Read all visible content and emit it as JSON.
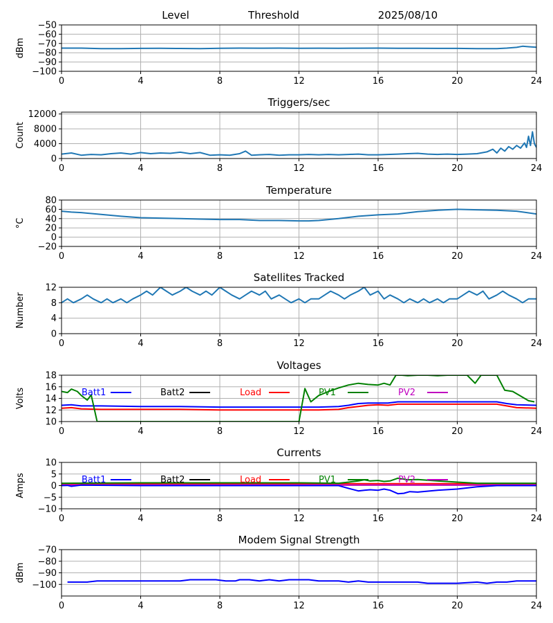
{
  "header": {
    "level": "Level",
    "threshold": "Threshold",
    "date": "2025/08/10"
  },
  "colors": {
    "series_default": "#1f77b4",
    "batt1": "#0000ff",
    "batt2": "#000000",
    "load": "#ff0000",
    "pv1": "#008000",
    "pv2": "#bf00bf",
    "grid": "#b0b0b0"
  },
  "chart_data": [
    {
      "id": "level",
      "type": "line",
      "title": "",
      "xlabel": "",
      "ylabel": "dBm",
      "xlim": [
        0,
        24
      ],
      "ylim": [
        -100,
        -50
      ],
      "xticks": [
        0,
        4,
        8,
        12,
        16,
        20,
        24
      ],
      "yticks": [
        -100,
        -90,
        -80,
        -70,
        -60,
        -50
      ],
      "grid": true,
      "series": [
        {
          "color": "#1f77b4",
          "x": [
            0.0,
            1.0,
            2.0,
            3.0,
            4.0,
            5.0,
            6.0,
            7.0,
            8.0,
            9.0,
            10.0,
            11.0,
            12.0,
            13.0,
            14.0,
            15.0,
            16.0,
            17.0,
            18.0,
            19.0,
            20.0,
            21.0,
            22.0,
            22.5,
            23.0,
            23.3,
            23.6,
            24.0
          ],
          "y": [
            -75,
            -75,
            -75.5,
            -75.5,
            -75.3,
            -75.2,
            -75.4,
            -75.5,
            -75.2,
            -75,
            -75.1,
            -75,
            -75.2,
            -75.1,
            -75.2,
            -75.1,
            -75,
            -75.2,
            -75.2,
            -75.3,
            -75.3,
            -75.5,
            -75.5,
            -75,
            -74.2,
            -73,
            -73.5,
            -74
          ]
        }
      ]
    },
    {
      "id": "triggers",
      "type": "line",
      "title": "Triggers/sec",
      "xlabel": "",
      "ylabel": "Count",
      "xlim": [
        0,
        24
      ],
      "ylim": [
        0,
        12500
      ],
      "xticks": [
        0,
        4,
        8,
        12,
        16,
        20,
        24
      ],
      "yticks": [
        0,
        4000,
        8000,
        12000
      ],
      "grid": true,
      "series": [
        {
          "color": "#1f77b4",
          "x": [
            0.0,
            0.5,
            1.0,
            1.5,
            2.0,
            2.5,
            3.0,
            3.5,
            4.0,
            4.5,
            5.0,
            5.5,
            6.0,
            6.5,
            7.0,
            7.5,
            8.0,
            8.5,
            9.0,
            9.3,
            9.6,
            10.0,
            10.5,
            11.0,
            11.5,
            12.0,
            12.5,
            13.0,
            13.5,
            14.0,
            14.5,
            15.0,
            15.5,
            16.0,
            16.5,
            17.0,
            17.5,
            18.0,
            18.5,
            19.0,
            19.5,
            20.0,
            20.5,
            21.0,
            21.5,
            21.8,
            22.0,
            22.2,
            22.4,
            22.6,
            22.8,
            23.0,
            23.2,
            23.4,
            23.5,
            23.6,
            23.7,
            23.8,
            23.9,
            24.0
          ],
          "y": [
            1200,
            1500,
            900,
            1100,
            1000,
            1300,
            1500,
            1200,
            1600,
            1300,
            1500,
            1400,
            1700,
            1300,
            1600,
            900,
            1000,
            900,
            1300,
            2000,
            900,
            1000,
            1100,
            900,
            1000,
            1000,
            1100,
            1000,
            1100,
            1000,
            1100,
            1200,
            1000,
            1000,
            1100,
            1200,
            1300,
            1400,
            1200,
            1100,
            1200,
            1100,
            1200,
            1300,
            1800,
            2500,
            1500,
            2800,
            2000,
            3200,
            2500,
            3500,
            2800,
            4200,
            3000,
            6000,
            3500,
            7200,
            4000,
            3000
          ]
        }
      ]
    },
    {
      "id": "temperature",
      "type": "line",
      "title": "Temperature",
      "xlabel": "",
      "ylabel": "°C",
      "xlim": [
        0,
        24
      ],
      "ylim": [
        -20,
        80
      ],
      "xticks": [
        0,
        4,
        8,
        12,
        16,
        20,
        24
      ],
      "yticks": [
        -20,
        0,
        20,
        40,
        60,
        80
      ],
      "grid": true,
      "series": [
        {
          "color": "#1f77b4",
          "x": [
            0.0,
            0.5,
            1.0,
            2.0,
            3.0,
            4.0,
            5.0,
            6.0,
            7.0,
            8.0,
            9.0,
            10.0,
            11.0,
            12.0,
            12.5,
            13.0,
            14.0,
            15.0,
            16.0,
            17.0,
            18.0,
            19.0,
            20.0,
            21.0,
            22.0,
            23.0,
            24.0
          ],
          "y": [
            56,
            54,
            53,
            49,
            45,
            42,
            41,
            40,
            39,
            38,
            38,
            36,
            36,
            35,
            35,
            36,
            40,
            45,
            48,
            50,
            55,
            58,
            60,
            59,
            58,
            56,
            50
          ]
        }
      ]
    },
    {
      "id": "satellites",
      "type": "line",
      "title": "Satellites Tracked",
      "xlabel": "",
      "ylabel": "Number",
      "xlim": [
        0,
        24
      ],
      "ylim": [
        0,
        12
      ],
      "xticks": [
        0,
        4,
        8,
        12,
        16,
        20,
        24
      ],
      "yticks": [
        0,
        4,
        8,
        12
      ],
      "grid": true,
      "series": [
        {
          "color": "#1f77b4",
          "x": [
            0.0,
            0.3,
            0.6,
            1.0,
            1.3,
            1.6,
            2.0,
            2.3,
            2.6,
            3.0,
            3.3,
            3.6,
            4.0,
            4.3,
            4.6,
            5.0,
            5.3,
            5.6,
            6.0,
            6.3,
            6.6,
            7.0,
            7.3,
            7.6,
            8.0,
            8.3,
            8.6,
            9.0,
            9.3,
            9.6,
            10.0,
            10.3,
            10.6,
            11.0,
            11.3,
            11.6,
            12.0,
            12.3,
            12.6,
            13.0,
            13.3,
            13.6,
            14.0,
            14.3,
            14.6,
            15.0,
            15.3,
            15.6,
            16.0,
            16.3,
            16.6,
            17.0,
            17.3,
            17.6,
            18.0,
            18.3,
            18.6,
            19.0,
            19.3,
            19.6,
            20.0,
            20.3,
            20.6,
            21.0,
            21.3,
            21.6,
            22.0,
            22.3,
            22.6,
            23.0,
            23.3,
            23.6,
            24.0
          ],
          "y": [
            8,
            9,
            8,
            9,
            10,
            9,
            8,
            9,
            8,
            9,
            8,
            9,
            10,
            11,
            10,
            12,
            11,
            10,
            11,
            12,
            11,
            10,
            11,
            10,
            12,
            11,
            10,
            9,
            10,
            11,
            10,
            11,
            9,
            10,
            9,
            8,
            9,
            8,
            9,
            9,
            10,
            11,
            10,
            9,
            10,
            11,
            12,
            10,
            11,
            9,
            10,
            9,
            8,
            9,
            8,
            9,
            8,
            9,
            8,
            9,
            9,
            10,
            11,
            10,
            11,
            9,
            10,
            11,
            10,
            9,
            8,
            9,
            9
          ]
        }
      ]
    },
    {
      "id": "voltages",
      "type": "line",
      "title": "Voltages",
      "xlabel": "",
      "ylabel": "Volts",
      "xlim": [
        0,
        24
      ],
      "ylim": [
        10,
        18
      ],
      "xticks": [
        0,
        4,
        8,
        12,
        16,
        20,
        24
      ],
      "yticks": [
        10,
        12,
        14,
        16,
        18
      ],
      "grid": true,
      "legend": [
        "Batt1",
        "Batt2",
        "Load",
        "PV1",
        "PV2"
      ],
      "series": [
        {
          "name": "Batt1",
          "color": "#0000ff",
          "x": [
            0.0,
            0.5,
            1.0,
            2.0,
            4.0,
            6.0,
            8.0,
            10.0,
            12.0,
            13.0,
            14.0,
            14.5,
            15.0,
            15.5,
            16.0,
            16.5,
            17.0,
            17.5,
            18.0,
            20.0,
            22.0,
            22.5,
            23.0,
            24.0
          ],
          "y": [
            12.8,
            12.9,
            12.7,
            12.7,
            12.6,
            12.6,
            12.5,
            12.5,
            12.5,
            12.5,
            12.6,
            12.8,
            13.1,
            13.2,
            13.2,
            13.2,
            13.4,
            13.4,
            13.4,
            13.4,
            13.4,
            13.1,
            12.9,
            12.8
          ]
        },
        {
          "name": "Load",
          "color": "#ff0000",
          "x": [
            0.0,
            0.5,
            1.0,
            2.0,
            4.0,
            6.0,
            8.0,
            10.0,
            12.0,
            13.0,
            14.0,
            14.5,
            15.0,
            15.5,
            16.0,
            16.5,
            17.0,
            17.5,
            18.0,
            20.0,
            22.0,
            22.5,
            23.0,
            24.0
          ],
          "y": [
            12.3,
            12.4,
            12.2,
            12.1,
            12.1,
            12.1,
            12.0,
            12.0,
            12.0,
            12.0,
            12.1,
            12.4,
            12.6,
            12.8,
            12.9,
            12.8,
            13.0,
            13.0,
            13.0,
            13.0,
            13.0,
            12.7,
            12.4,
            12.3
          ]
        },
        {
          "name": "PV1",
          "color": "#008000",
          "x": [
            0.0,
            0.3,
            0.5,
            0.8,
            1.0,
            1.3,
            1.5,
            1.8,
            12.0,
            12.3,
            12.6,
            13.0,
            13.5,
            14.0,
            14.5,
            15.0,
            15.5,
            16.0,
            16.3,
            16.6,
            16.9,
            17.2,
            17.5,
            18.0,
            18.5,
            19.0,
            19.5,
            20.0,
            20.5,
            20.9,
            21.2,
            21.6,
            22.0,
            22.4,
            22.8,
            23.2,
            23.6,
            23.9
          ],
          "y": [
            15.2,
            15.0,
            15.6,
            15.2,
            14.5,
            13.7,
            14.6,
            10.0,
            10.0,
            15.7,
            13.4,
            14.5,
            15.2,
            15.8,
            16.3,
            16.6,
            16.4,
            16.3,
            16.6,
            16.3,
            18.0,
            18.0,
            17.9,
            18.0,
            18.0,
            17.9,
            18.0,
            18.0,
            18.0,
            16.6,
            18.0,
            18.0,
            18.0,
            15.4,
            15.2,
            14.4,
            13.6,
            13.4
          ]
        }
      ]
    },
    {
      "id": "currents",
      "type": "line",
      "title": "Currents",
      "xlabel": "",
      "ylabel": "Amps",
      "xlim": [
        0,
        24
      ],
      "ylim": [
        -10,
        10
      ],
      "xticks": [
        0,
        4,
        8,
        12,
        16,
        20,
        24
      ],
      "yticks": [
        -10,
        -5,
        0,
        5,
        10
      ],
      "grid": true,
      "legend": [
        "Batt1",
        "Batt2",
        "Load",
        "PV1",
        "PV2"
      ],
      "series": [
        {
          "name": "Load",
          "color": "#ff0000",
          "x": [
            0,
            24
          ],
          "y": [
            0.8,
            0.8
          ]
        },
        {
          "name": "PV2",
          "color": "#bf00bf",
          "x": [
            0,
            24
          ],
          "y": [
            0.2,
            0.2
          ]
        },
        {
          "name": "PV1",
          "color": "#008000",
          "x": [
            0.0,
            4.0,
            8.0,
            12.0,
            14.0,
            14.5,
            15.0,
            15.3,
            15.6,
            16.0,
            16.3,
            16.6,
            17.0,
            17.5,
            18.0,
            19.0,
            20.0,
            21.0,
            22.0,
            23.0,
            24.0
          ],
          "y": [
            1.0,
            1.2,
            1.2,
            1.2,
            1.0,
            1.5,
            2.0,
            2.5,
            2.0,
            2.2,
            1.8,
            2.0,
            3.2,
            2.5,
            2.6,
            2.0,
            1.5,
            1.0,
            1.0,
            1.0,
            1.0
          ]
        },
        {
          "name": "Batt1",
          "color": "#0000ff",
          "x": [
            0.0,
            0.3,
            0.5,
            1.0,
            4.0,
            8.0,
            12.0,
            14.0,
            14.5,
            15.0,
            15.3,
            15.6,
            16.0,
            16.3,
            16.6,
            17.0,
            17.3,
            17.6,
            18.0,
            19.0,
            20.0,
            21.0,
            22.0,
            23.0,
            24.0
          ],
          "y": [
            0.0,
            0.1,
            -0.3,
            0.2,
            0.0,
            0.0,
            0.0,
            0.0,
            -1.2,
            -2.3,
            -2.0,
            -1.8,
            -2.0,
            -1.5,
            -2.0,
            -3.5,
            -3.3,
            -2.6,
            -2.8,
            -2.0,
            -1.5,
            -0.5,
            0.0,
            0.0,
            0.0
          ]
        }
      ]
    },
    {
      "id": "modem",
      "type": "line",
      "title": "Modem Signal Strength",
      "xlabel": "",
      "ylabel": "dBm",
      "xlim": [
        0,
        24
      ],
      "ylim": [
        -110,
        -70
      ],
      "xticks": [
        0,
        4,
        8,
        12,
        16,
        20,
        24
      ],
      "yticks": [
        -100,
        -90,
        -80,
        -70
      ],
      "grid": true,
      "series": [
        {
          "color": "#0000ff",
          "x": [
            0.3,
            1.0,
            1.3,
            1.8,
            2.0,
            3.0,
            4.0,
            5.0,
            6.0,
            6.5,
            7.0,
            7.5,
            7.8,
            8.3,
            8.8,
            9.0,
            9.5,
            10.0,
            10.5,
            11.0,
            11.5,
            12.0,
            12.5,
            13.0,
            13.5,
            14.0,
            14.5,
            15.0,
            15.5,
            16.0,
            17.0,
            18.0,
            18.5,
            19.0,
            19.5,
            20.0,
            21.0,
            21.5,
            22.0,
            22.5,
            23.0,
            23.5,
            24.0
          ],
          "y": [
            -98,
            -98,
            -98,
            -97,
            -97,
            -97,
            -97,
            -97,
            -97,
            -96,
            -96,
            -96,
            -96,
            -97,
            -97,
            -96,
            -96,
            -97,
            -96,
            -97,
            -96,
            -96,
            -96,
            -97,
            -97,
            -97,
            -98,
            -97,
            -98,
            -98,
            -98,
            -98,
            -99,
            -99,
            -99,
            -99,
            -98,
            -99,
            -98,
            -98,
            -97,
            -97,
            -97
          ]
        }
      ]
    }
  ]
}
